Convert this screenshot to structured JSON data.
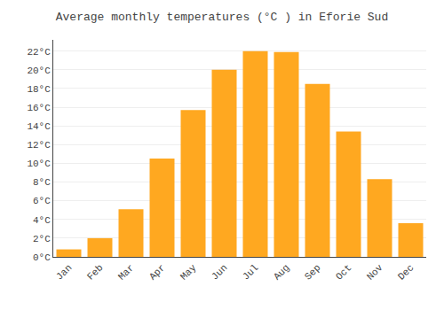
{
  "chart_data": {
    "type": "bar",
    "title": "Average monthly temperatures (°C ) in Eforie Sud",
    "categories": [
      "Jan",
      "Feb",
      "Mar",
      "Apr",
      "May",
      "Jun",
      "Jul",
      "Aug",
      "Sep",
      "Oct",
      "Nov",
      "Dec"
    ],
    "values": [
      0.8,
      2.0,
      5.1,
      10.5,
      15.7,
      20.0,
      22.0,
      21.9,
      18.5,
      13.4,
      8.3,
      3.6
    ],
    "color": "#FFA820",
    "ylim": [
      0,
      23.2
    ],
    "yticks": [
      {
        "value": 0,
        "label": "0°C"
      },
      {
        "value": 2,
        "label": "2°C"
      },
      {
        "value": 4,
        "label": "4°C"
      },
      {
        "value": 6,
        "label": "6°C"
      },
      {
        "value": 8,
        "label": "8°C"
      },
      {
        "value": 10,
        "label": "10°C"
      },
      {
        "value": 12,
        "label": "12°C"
      },
      {
        "value": 14,
        "label": "14°C"
      },
      {
        "value": 16,
        "label": "16°C"
      },
      {
        "value": 18,
        "label": "18°C"
      },
      {
        "value": 20,
        "label": "20°C"
      },
      {
        "value": 22,
        "label": "22°C"
      }
    ],
    "grid": true
  }
}
